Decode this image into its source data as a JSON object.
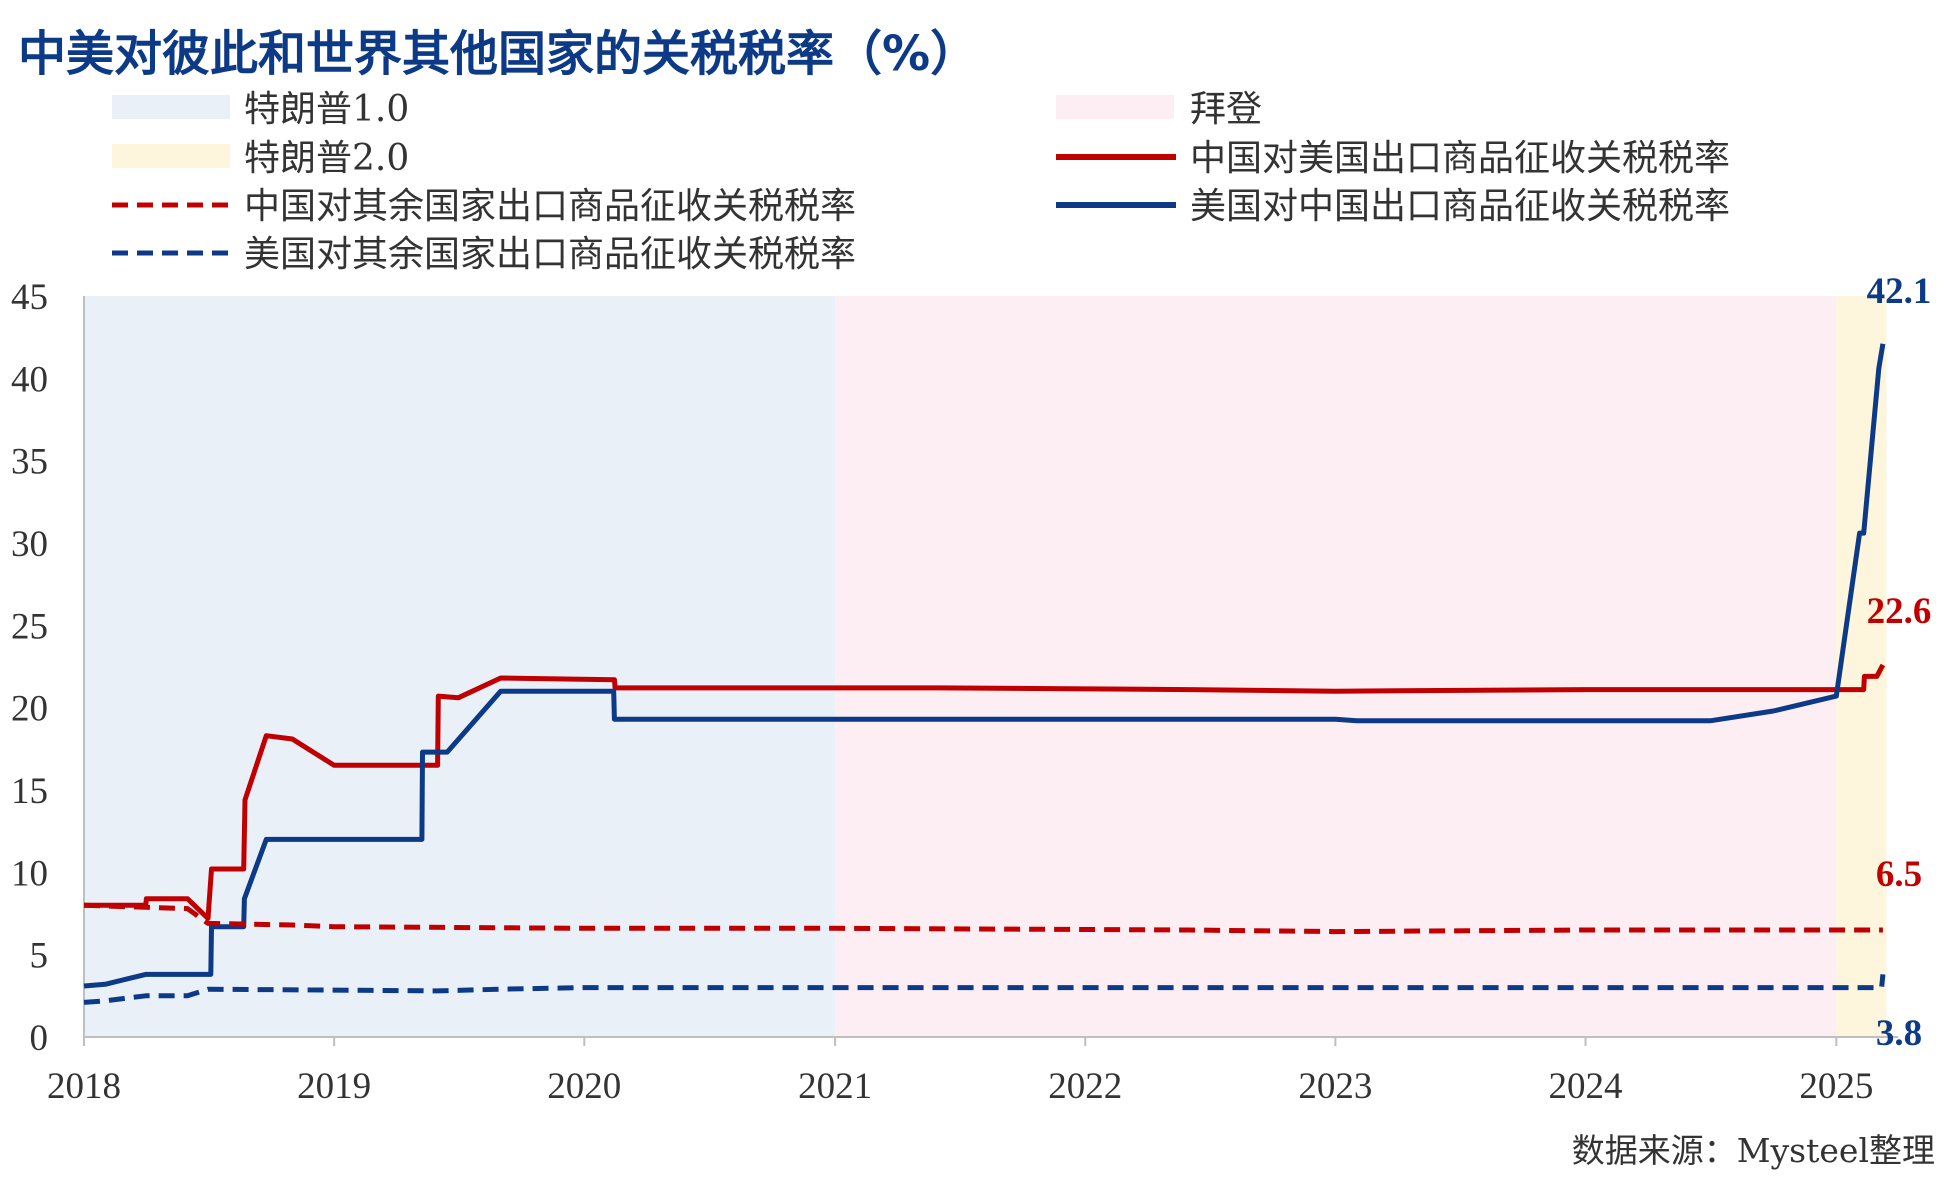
{
  "chart_data": {
    "type": "line",
    "title": "中美对彼此和世界其他国家的关税税率（%）",
    "source": "数据来源：Mysteel整理",
    "x_domain": [
      "2018-01-01",
      "2025-04-01"
    ],
    "ylim": [
      0,
      45
    ],
    "yticks": [
      "0",
      "5",
      "10",
      "15",
      "20",
      "25",
      "30",
      "35",
      "40",
      "45"
    ],
    "xticks": [
      "2018",
      "2019",
      "2020",
      "2021",
      "2022",
      "2023",
      "2024",
      "2025"
    ],
    "grid": false,
    "legend_position": "top",
    "periods": [
      {
        "name": "特朗普1.0",
        "start": "2018-01-01",
        "end": "2021-01-01",
        "color": "#e9f0f8"
      },
      {
        "name": "拜登",
        "start": "2021-01-01",
        "end": "2025-01-01",
        "color": "#fdeef3"
      },
      {
        "name": "特朗普2.0",
        "start": "2025-01-01",
        "end": "2025-03-15",
        "color": "#fdf5dc"
      }
    ],
    "series": [
      {
        "name": "中国对美国出口商品征收关税税率",
        "color": "#c00000",
        "dash": "solid",
        "end_label": "22.6",
        "points": [
          [
            "2018-01-01",
            8.0
          ],
          [
            "2018-04-01",
            8.0
          ],
          [
            "2018-04-02",
            8.4
          ],
          [
            "2018-06-01",
            8.4
          ],
          [
            "2018-07-01",
            7.2
          ],
          [
            "2018-07-06",
            10.2
          ],
          [
            "2018-08-22",
            10.2
          ],
          [
            "2018-08-24",
            14.4
          ],
          [
            "2018-09-24",
            18.3
          ],
          [
            "2018-11-01",
            18.1
          ],
          [
            "2019-01-01",
            16.5
          ],
          [
            "2019-06-01",
            16.5
          ],
          [
            "2019-06-02",
            20.7
          ],
          [
            "2019-07-01",
            20.6
          ],
          [
            "2019-09-01",
            21.8
          ],
          [
            "2020-02-14",
            21.7
          ],
          [
            "2020-02-15",
            21.2
          ],
          [
            "2021-06-01",
            21.2
          ],
          [
            "2022-06-01",
            21.1
          ],
          [
            "2023-01-01",
            21.0
          ],
          [
            "2024-01-01",
            21.1
          ],
          [
            "2025-01-01",
            21.1
          ],
          [
            "2025-02-10",
            21.1
          ],
          [
            "2025-02-11",
            21.9
          ],
          [
            "2025-03-01",
            21.9
          ],
          [
            "2025-03-10",
            22.6
          ]
        ]
      },
      {
        "name": "美国对中国出口商品征收关税税率",
        "color": "#0d3a87",
        "dash": "solid",
        "end_label": "42.1",
        "points": [
          [
            "2018-01-01",
            3.1
          ],
          [
            "2018-02-01",
            3.2
          ],
          [
            "2018-04-01",
            3.8
          ],
          [
            "2018-07-05",
            3.8
          ],
          [
            "2018-07-06",
            6.7
          ],
          [
            "2018-08-22",
            6.7
          ],
          [
            "2018-08-23",
            8.4
          ],
          [
            "2018-09-24",
            12.0
          ],
          [
            "2019-05-09",
            12.0
          ],
          [
            "2019-05-10",
            17.3
          ],
          [
            "2019-06-15",
            17.3
          ],
          [
            "2019-09-01",
            21.0
          ],
          [
            "2020-02-13",
            21.0
          ],
          [
            "2020-02-14",
            19.3
          ],
          [
            "2021-06-01",
            19.3
          ],
          [
            "2023-01-01",
            19.3
          ],
          [
            "2023-02-01",
            19.2
          ],
          [
            "2024-07-01",
            19.2
          ],
          [
            "2024-10-01",
            19.8
          ],
          [
            "2025-01-01",
            20.7
          ],
          [
            "2025-02-04",
            30.6
          ],
          [
            "2025-02-10",
            30.6
          ],
          [
            "2025-03-04",
            40.6
          ],
          [
            "2025-03-10",
            42.1
          ]
        ]
      },
      {
        "name": "中国对其余国家出口商品征收关税税率",
        "color": "#c00000",
        "dash": "dashed",
        "end_label": "6.5",
        "points": [
          [
            "2018-01-01",
            8.0
          ],
          [
            "2018-06-01",
            7.8
          ],
          [
            "2018-07-01",
            6.9
          ],
          [
            "2018-11-01",
            6.8
          ],
          [
            "2019-01-01",
            6.7
          ],
          [
            "2020-01-01",
            6.6
          ],
          [
            "2021-01-01",
            6.6
          ],
          [
            "2022-06-01",
            6.5
          ],
          [
            "2023-01-01",
            6.4
          ],
          [
            "2024-01-01",
            6.5
          ],
          [
            "2025-03-10",
            6.5
          ]
        ]
      },
      {
        "name": "美国对其余国家出口商品征收关税税率",
        "color": "#0d3a87",
        "dash": "dashed",
        "end_label": "3.8",
        "points": [
          [
            "2018-01-01",
            2.1
          ],
          [
            "2018-02-01",
            2.2
          ],
          [
            "2018-04-01",
            2.5
          ],
          [
            "2018-06-01",
            2.5
          ],
          [
            "2018-07-01",
            2.9
          ],
          [
            "2019-06-01",
            2.8
          ],
          [
            "2019-09-01",
            2.9
          ],
          [
            "2020-01-01",
            3.0
          ],
          [
            "2021-01-01",
            3.0
          ],
          [
            "2022-01-01",
            3.0
          ],
          [
            "2023-01-01",
            3.0
          ],
          [
            "2024-01-01",
            3.0
          ],
          [
            "2025-03-08",
            3.0
          ],
          [
            "2025-03-10",
            3.8
          ]
        ]
      }
    ]
  }
}
